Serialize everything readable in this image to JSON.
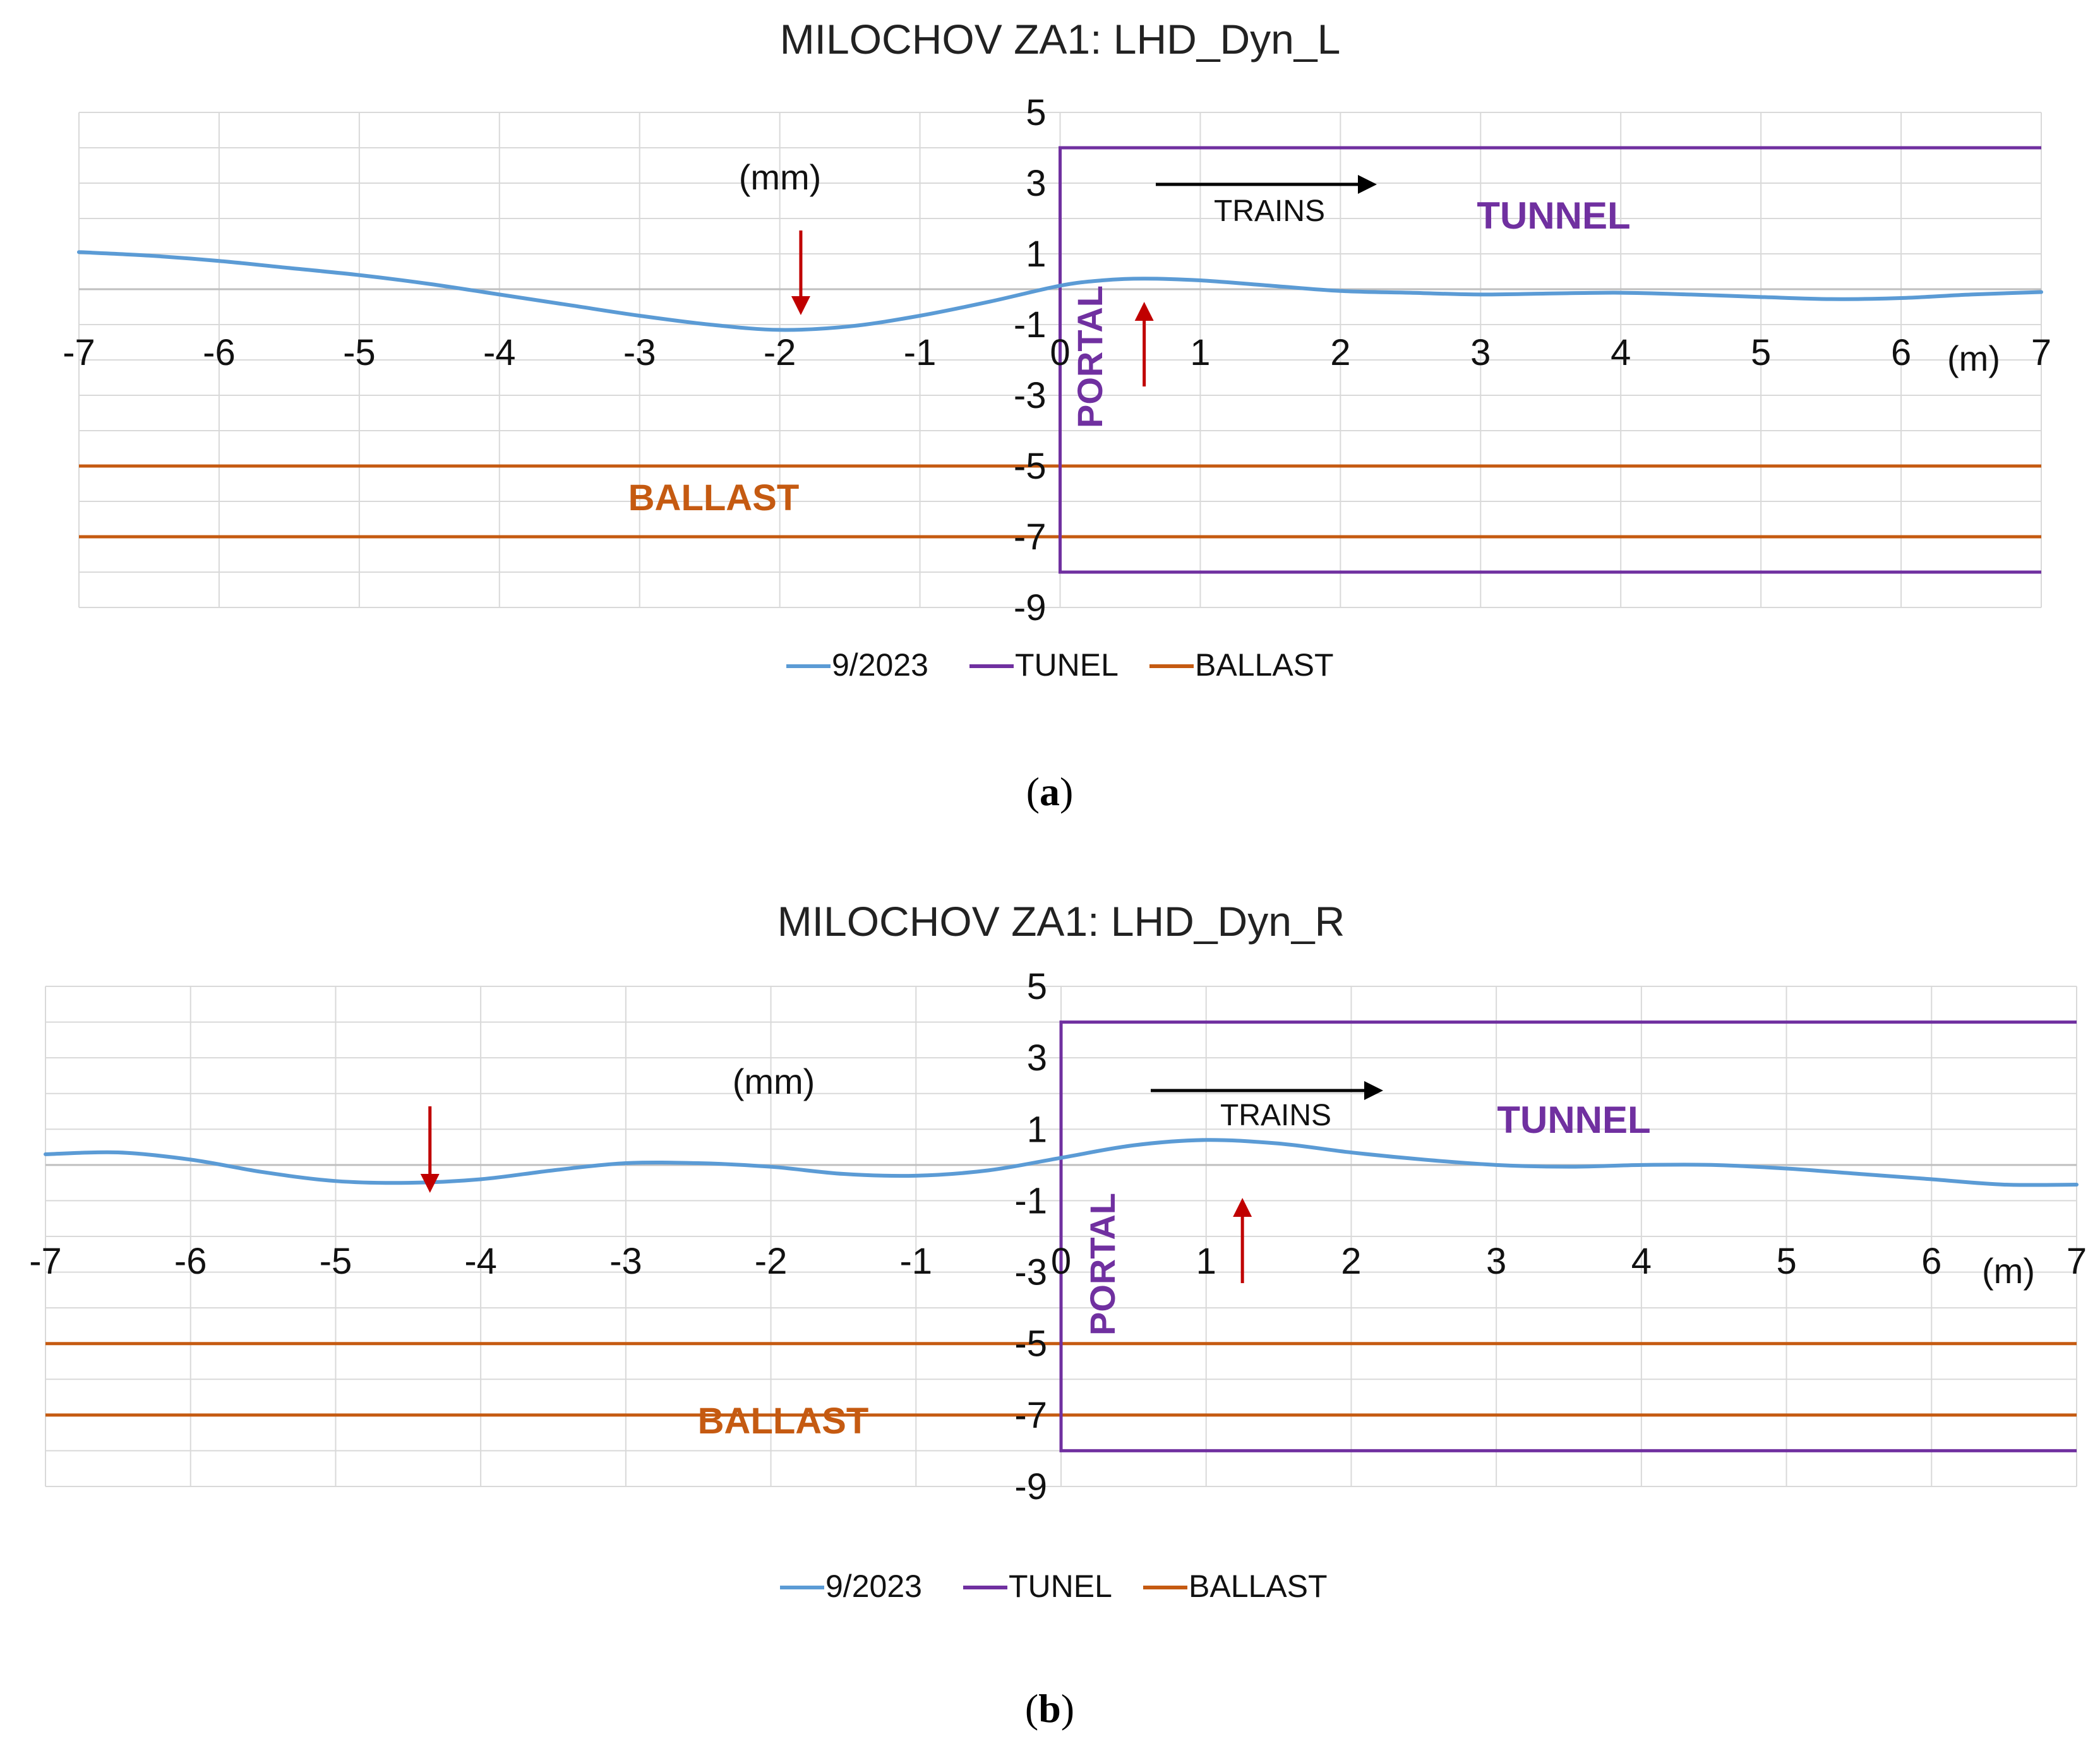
{
  "chart_data": [
    {
      "type": "line",
      "panel_label": "a",
      "title": "MILOCHOV ZA1: LHD_Dyn_L",
      "ylabel": "(mm)",
      "xlabel": "(m)",
      "xlim": [
        -7,
        7
      ],
      "ylim": [
        -9,
        5
      ],
      "x_ticks": [
        "-7",
        "-6",
        "-5",
        "-4",
        "-3",
        "-2",
        "-1",
        "0",
        "1",
        "2",
        "3",
        "4",
        "5",
        "6",
        "7"
      ],
      "y_ticks": [
        "5",
        "3",
        "1",
        "-1",
        "-3",
        "-5",
        "-7",
        "-9"
      ],
      "series": [
        {
          "name": "9/2023",
          "color": "#5B9BD5",
          "x": [
            -7,
            -6.5,
            -6,
            -5.5,
            -5,
            -4.5,
            -4,
            -3.5,
            -3,
            -2.5,
            -2,
            -1.5,
            -1,
            -0.5,
            0,
            0.3,
            0.6,
            1,
            1.5,
            2,
            2.5,
            3,
            3.5,
            4,
            4.5,
            5,
            5.5,
            6,
            6.5,
            7
          ],
          "values": [
            1.05,
            0.95,
            0.8,
            0.6,
            0.4,
            0.15,
            -0.15,
            -0.45,
            -0.75,
            -1.0,
            -1.15,
            -1.05,
            -0.75,
            -0.35,
            0.1,
            0.25,
            0.3,
            0.25,
            0.1,
            -0.05,
            -0.1,
            -0.15,
            -0.12,
            -0.1,
            -0.15,
            -0.22,
            -0.28,
            -0.25,
            -0.15,
            -0.08
          ]
        },
        {
          "name": "TUNEL",
          "color": "#7030A0",
          "rect": {
            "x0": 0,
            "x1": 7,
            "y0": -8,
            "y1": 4
          }
        },
        {
          "name": "BALLAST",
          "color": "#C55A11",
          "hlines": [
            -5,
            -7
          ]
        }
      ],
      "legend": [
        "9/2023",
        "TUNEL",
        "BALLAST"
      ],
      "legend_position": "bottom",
      "annotations": {
        "trains": "TRAINS",
        "tunnel": "TUNNEL",
        "portal": "PORTAL",
        "ballast": "BALLAST",
        "down_arrow_x": -1.85,
        "up_arrow_x": 0.6
      }
    },
    {
      "type": "line",
      "panel_label": "b",
      "title": "MILOCHOV  ZA1: LHD_Dyn_R",
      "ylabel": "(mm)",
      "xlabel": "(m)",
      "xlim": [
        -7,
        7
      ],
      "ylim": [
        -9,
        5
      ],
      "x_ticks": [
        "-7",
        "-6",
        "-5",
        "-4",
        "-3",
        "-2",
        "-1",
        "0",
        "1",
        "2",
        "3",
        "4",
        "5",
        "6",
        "7"
      ],
      "y_ticks": [
        "5",
        "3",
        "1",
        "-1",
        "-3",
        "-5",
        "-7",
        "-9"
      ],
      "series": [
        {
          "name": "9/2023",
          "color": "#5B9BD5",
          "x": [
            -7,
            -6.5,
            -6,
            -5.5,
            -5,
            -4.5,
            -4,
            -3.5,
            -3,
            -2.5,
            -2,
            -1.5,
            -1,
            -0.5,
            0,
            0.5,
            1,
            1.5,
            2,
            2.5,
            3,
            3.5,
            4,
            4.5,
            5,
            5.5,
            6,
            6.5,
            7
          ],
          "values": [
            0.3,
            0.35,
            0.15,
            -0.2,
            -0.45,
            -0.5,
            -0.4,
            -0.15,
            0.05,
            0.05,
            -0.05,
            -0.25,
            -0.3,
            -0.15,
            0.2,
            0.55,
            0.7,
            0.6,
            0.35,
            0.15,
            0.0,
            -0.05,
            0.0,
            0.0,
            -0.1,
            -0.25,
            -0.4,
            -0.55,
            -0.55
          ]
        },
        {
          "name": "TUNEL",
          "color": "#7030A0",
          "rect": {
            "x0": 0,
            "x1": 7,
            "y0": -8,
            "y1": 4
          }
        },
        {
          "name": "BALLAST",
          "color": "#C55A11",
          "hlines": [
            -5,
            -7
          ]
        }
      ],
      "legend": [
        "9/2023",
        "TUNEL",
        "BALLAST"
      ],
      "legend_position": "bottom",
      "annotations": {
        "trains": "TRAINS",
        "tunnel": "TUNNEL",
        "portal": "PORTAL",
        "ballast": "BALLAST",
        "down_arrow_x": -4.35,
        "up_arrow_x": 1.25
      }
    }
  ],
  "arrow_color": "#C00000",
  "train_arrow_color": "#000000",
  "grid_color": "#D9D9D9"
}
